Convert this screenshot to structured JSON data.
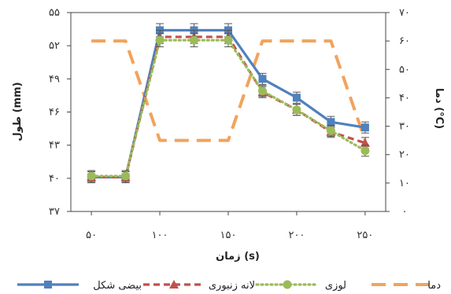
{
  "chart_data": {
    "type": "line",
    "x": [
      50,
      75,
      100,
      125,
      150,
      175,
      200,
      225,
      250
    ],
    "x_tick_values": [
      50,
      100,
      150,
      200,
      250
    ],
    "x_tick_labels": [
      "۵۰",
      "۱۰۰",
      "۱۵۰",
      "۲۰۰",
      "۲۵۰"
    ],
    "xlabel": "زمان (s)",
    "xlim": [
      35,
      265
    ],
    "y_left": {
      "label": "طول (mm)",
      "lim": [
        37,
        55
      ],
      "tick_values": [
        37,
        40,
        43,
        46,
        49,
        52,
        55
      ],
      "tick_labels": [
        "۳۷",
        "۴۰",
        "۴۳",
        "۴۶",
        "۴۹",
        "۵۲",
        "۵۵"
      ]
    },
    "y_right": {
      "label": "دما (°C)",
      "lim": [
        0,
        70
      ],
      "tick_values": [
        0,
        10,
        20,
        30,
        40,
        50,
        60,
        70
      ],
      "tick_labels": [
        "۰",
        "۱۰",
        "۲۰",
        "۳۰",
        "۴۰",
        "۵۰",
        "۶۰",
        "۷۰"
      ]
    },
    "series": [
      {
        "name": "بیضی شکل",
        "axis": "left",
        "color": "#4f81bd",
        "style": "solid",
        "marker": "square",
        "values": [
          40.1,
          40.1,
          53.4,
          53.4,
          53.4,
          49.0,
          47.3,
          45.1,
          44.6
        ],
        "errors": [
          0.5,
          0.5,
          0.6,
          0.6,
          0.6,
          0.5,
          0.5,
          0.5,
          0.5
        ]
      },
      {
        "name": "لانه زنبوری",
        "axis": "left",
        "color": "#c0504d",
        "style": "dashed",
        "marker": "triangle",
        "values": [
          40.1,
          40.1,
          52.8,
          52.8,
          52.8,
          47.8,
          46.2,
          44.2,
          43.2
        ],
        "errors": [
          0.5,
          0.5,
          0.6,
          0.6,
          0.6,
          0.5,
          0.5,
          0.5,
          0.5
        ]
      },
      {
        "name": "لوزی",
        "axis": "left",
        "color": "#9bbb59",
        "style": "dotted",
        "marker": "circle",
        "values": [
          40.2,
          40.2,
          52.5,
          52.5,
          52.5,
          47.9,
          46.2,
          44.3,
          42.5
        ],
        "errors": [
          0.5,
          0.5,
          0.6,
          0.6,
          0.6,
          0.5,
          0.5,
          0.5,
          0.5
        ]
      },
      {
        "name": "دما",
        "axis": "right",
        "color": "#f2a35c",
        "style": "longdash",
        "marker": "none",
        "values": [
          60,
          60,
          25,
          25,
          25,
          60,
          60,
          60,
          25
        ]
      }
    ],
    "legend_position": "bottom",
    "grid": false
  }
}
